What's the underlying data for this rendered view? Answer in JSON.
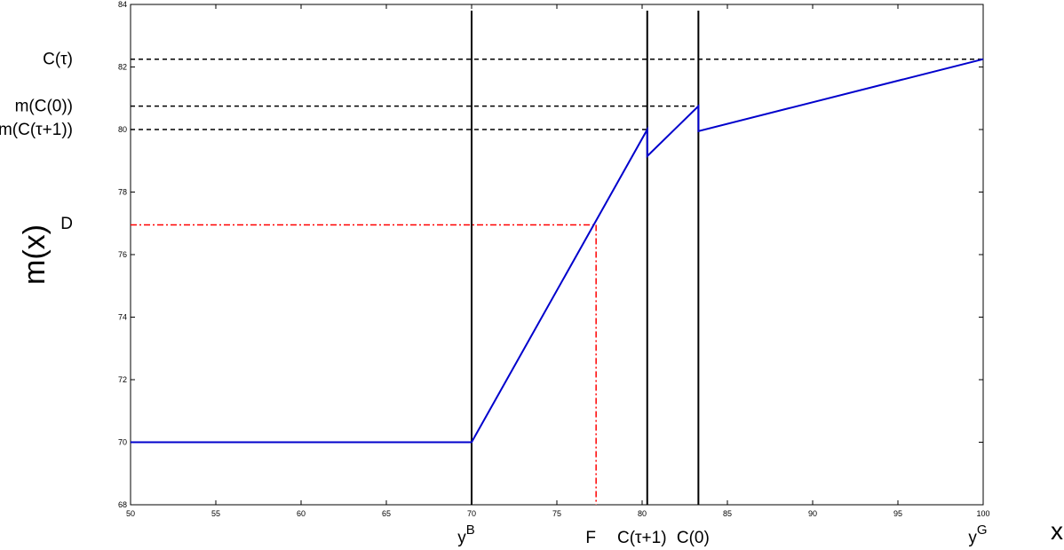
{
  "chart_data": {
    "type": "line",
    "xlabel": "x",
    "ylabel": "m(x)",
    "xlim": [
      50,
      100
    ],
    "ylim": [
      68,
      84
    ],
    "xticks": [
      50,
      55,
      60,
      65,
      70,
      75,
      80,
      85,
      90,
      95,
      100
    ],
    "yticks": [
      68,
      70,
      72,
      74,
      76,
      78,
      80,
      82,
      84
    ],
    "grid": false,
    "series": [
      {
        "color": "#0000cc",
        "points": [
          [
            50,
            70
          ],
          [
            70,
            70
          ],
          [
            80.3,
            80
          ],
          [
            80.3,
            79.15
          ],
          [
            83.3,
            80.75
          ],
          [
            83.3,
            79.95
          ],
          [
            100,
            82.25
          ]
        ]
      }
    ],
    "vertical_lines": [
      {
        "x": 70,
        "y_top": 83.8
      },
      {
        "x": 80.3,
        "y_top": 83.8
      },
      {
        "x": 83.3,
        "y_top": 83.8
      }
    ],
    "reference_lines": [
      {
        "y": 82.25,
        "x_end": 100,
        "style": "dashed",
        "color": "#000000"
      },
      {
        "y": 80.75,
        "x_end": 83.3,
        "style": "dashed",
        "color": "#000000"
      },
      {
        "y": 80.0,
        "x_end": 80.3,
        "style": "dashed",
        "color": "#000000"
      },
      {
        "y": 76.95,
        "x_end": 77.3,
        "style": "dashdot",
        "color": "#ff0000",
        "drop_to_axis": true
      }
    ],
    "y_annotations": [
      {
        "label": "C(τ)",
        "y": 82.25
      },
      {
        "label": "m(C(0))",
        "y": 80.75
      },
      {
        "label": "m(C(τ+1))",
        "y": 80.0
      },
      {
        "label": "D",
        "y": 77.0
      }
    ],
    "x_annotations": [
      {
        "base": "y",
        "sup": "B",
        "x": 70
      },
      {
        "base": "F",
        "sup": "",
        "x": 77.3
      },
      {
        "base": "C(τ+1)",
        "sup": "",
        "x": 80.3
      },
      {
        "base": "C(0)",
        "sup": "",
        "x": 83.3
      },
      {
        "base": "y",
        "sup": "G",
        "x": 100
      }
    ]
  }
}
